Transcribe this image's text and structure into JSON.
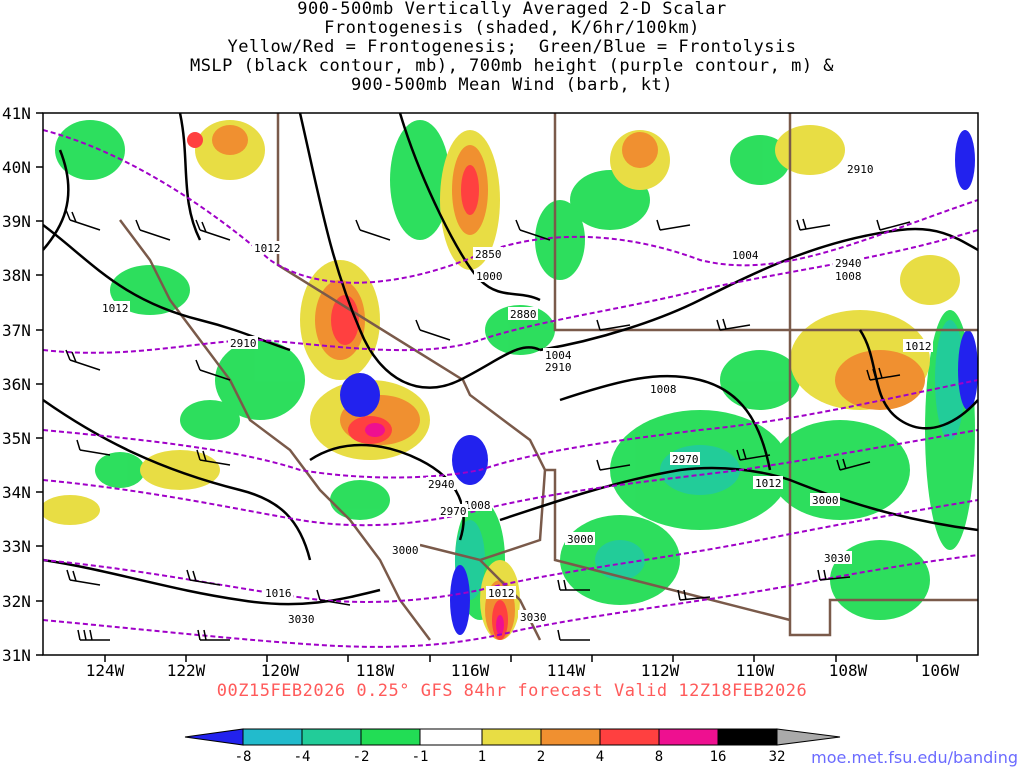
{
  "title_lines": [
    "900-500mb Vertically Averaged 2-D Scalar",
    "Frontogenesis (shaded, K/6hr/100km)",
    "Yellow/Red = Frontogenesis;  Green/Blue = Frontolysis",
    "MSLP (black contour, mb), 700mb height (purple contour, m) &",
    "900-500mb Mean Wind (barb, kt)"
  ],
  "footer": "00Z15FEB2026 0.25° GFS 84hr forecast Valid 12Z18FEB2026",
  "credit": "moe.met.fsu.edu/banding",
  "lat_labels": [
    "41N",
    "40N",
    "39N",
    "38N",
    "37N",
    "36N",
    "35N",
    "34N",
    "33N",
    "32N",
    "31N"
  ],
  "lon_labels": [
    "124W",
    "122W",
    "120W",
    "118W",
    "116W",
    "114W",
    "112W",
    "110W",
    "108W",
    "106W"
  ],
  "colorbar": {
    "labels": [
      "-8",
      "-4",
      "-2",
      "-1",
      "1",
      "2",
      "4",
      "8",
      "16",
      "32"
    ],
    "colors": [
      "#2222ee",
      "#22bbcc",
      "#22cc99",
      "#22dd55",
      "#ffffff",
      "#e8dd44",
      "#f09030",
      "#ff4040",
      "#ee1090",
      "#000000",
      "#aaaaaa"
    ]
  },
  "mslp_labels": [
    "1012",
    "1012",
    "1000",
    "1004",
    "1004",
    "1008",
    "1008",
    "1012",
    "1012",
    "1008",
    "1012",
    "1016"
  ],
  "height_labels": [
    "2850",
    "2880",
    "2910",
    "2910",
    "2910",
    "2940",
    "2940",
    "2970",
    "2970",
    "3000",
    "3000",
    "3000",
    "3030",
    "3030",
    "3030"
  ],
  "colors": {
    "mslp": "#000000",
    "height": "#a000c8",
    "border": "#7a5a4a"
  }
}
